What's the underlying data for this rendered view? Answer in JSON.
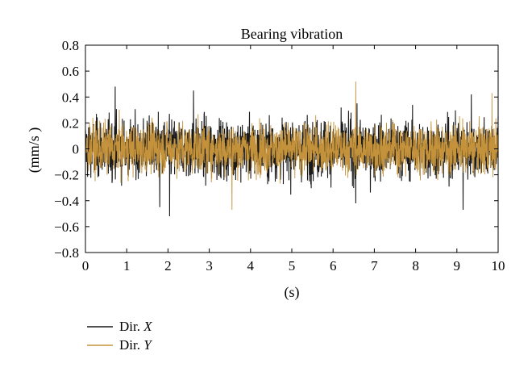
{
  "chart_data": {
    "type": "line",
    "title": "Bearing vibration",
    "xlabel": "(s)",
    "ylabel": "(mm/s )",
    "xlim": [
      0,
      10
    ],
    "ylim": [
      -0.8,
      0.8
    ],
    "xticks": [
      0,
      1,
      2,
      3,
      4,
      5,
      6,
      7,
      8,
      9,
      10
    ],
    "yticks": [
      0.8,
      0.6,
      0.4,
      0.2,
      0,
      -0.2,
      -0.4,
      -0.6,
      -0.8
    ],
    "ytick_labels": [
      "0.8",
      "0.6",
      "0.4",
      "0.2",
      "0",
      "−0.2",
      "−0.4",
      "−0.6",
      "−0.8"
    ],
    "grid": false,
    "legend_position": "bottom-left, outside plot",
    "series": [
      {
        "name": "Dir. X",
        "legend_prefix": "Dir. ",
        "legend_var": "X",
        "color": "#1a1a1a",
        "amplitude_envelope": [
          -0.45,
          0.45
        ],
        "approx_peaks": [
          {
            "x": 0.72,
            "y": 0.48
          },
          {
            "x": 2.04,
            "y": -0.52
          },
          {
            "x": 2.62,
            "y": 0.45
          },
          {
            "x": 1.8,
            "y": -0.45
          },
          {
            "x": 6.55,
            "y": -0.42
          },
          {
            "x": 9.15,
            "y": -0.47
          },
          {
            "x": 9.35,
            "y": 0.42
          }
        ]
      },
      {
        "name": "Dir. Y",
        "legend_prefix": "Dir. ",
        "legend_var": "Y",
        "color": "#c4923b",
        "amplitude_envelope": [
          -0.38,
          0.38
        ],
        "approx_peaks": [
          {
            "x": 6.55,
            "y": 0.52
          },
          {
            "x": 3.55,
            "y": -0.47
          },
          {
            "x": 9.85,
            "y": 0.43
          }
        ]
      }
    ]
  }
}
